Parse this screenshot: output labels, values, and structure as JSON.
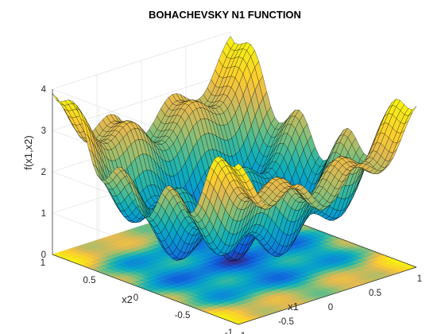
{
  "chart_data": {
    "type": "surface",
    "title": "BOHACHEVSKY N1 FUNCTION",
    "xlabel": "x1",
    "ylabel": "x2",
    "zlabel": "f(x1,x2)",
    "function": "f(x1,x2) = x1^2 + 2*x2^2 - 0.3*cos(3*pi*x1) - 0.4*cos(4*pi*x2) + 0.7, displayed scaled to the z axis range",
    "xlim": [
      -1,
      1
    ],
    "ylim": [
      -1,
      1
    ],
    "zlim": [
      0,
      4
    ],
    "x_ticks": [
      "-1",
      "-0.5",
      "0",
      "0.5",
      "1"
    ],
    "y_ticks": [
      "-1",
      "-0.5",
      "0",
      "0.5",
      "1"
    ],
    "z_ticks": [
      "0",
      "1",
      "2",
      "3",
      "4"
    ],
    "grid": true,
    "colormap": "parula",
    "contour_projection": true,
    "surface_edge_color": "#000000"
  }
}
